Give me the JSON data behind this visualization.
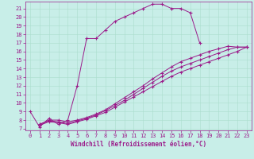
{
  "xlabel": "Windchill (Refroidissement éolien,°C)",
  "bg_color": "#c8eee8",
  "line_color": "#9b1a8a",
  "grid_color": "#aaddcc",
  "tick_fontsize": 5,
  "label_fontsize": 5.5,
  "xmin": -0.5,
  "xmax": 23.5,
  "ymin": 6.8,
  "ymax": 21.8,
  "main_x": [
    0,
    1,
    2,
    3,
    4,
    5,
    6,
    7,
    8,
    9,
    10,
    11,
    12,
    13,
    14,
    15,
    16,
    17,
    18
  ],
  "main_y": [
    9.0,
    7.2,
    8.2,
    7.5,
    8.0,
    12.0,
    17.5,
    17.5,
    18.5,
    19.5,
    20.0,
    20.5,
    21.0,
    21.5,
    21.5,
    21.0,
    21.0,
    20.5,
    17.0
  ],
  "l2x": [
    1,
    2,
    3,
    4,
    5,
    6,
    7,
    8,
    9,
    10,
    11,
    12,
    13,
    14,
    15,
    16,
    17,
    18,
    19,
    20,
    21,
    22,
    23
  ],
  "l2y": [
    7.5,
    8.0,
    8.0,
    7.8,
    8.0,
    8.3,
    8.7,
    9.2,
    9.9,
    10.6,
    11.3,
    12.0,
    12.8,
    13.5,
    14.2,
    14.8,
    15.2,
    15.6,
    16.0,
    16.3,
    16.6,
    16.5,
    16.5
  ],
  "l3x": [
    1,
    2,
    3,
    4,
    5,
    6,
    7,
    8,
    9,
    10,
    11,
    12,
    13,
    14,
    15,
    16,
    17,
    18,
    19,
    20,
    21,
    22,
    23
  ],
  "l3y": [
    7.5,
    7.9,
    7.8,
    7.6,
    7.9,
    8.2,
    8.6,
    9.1,
    9.7,
    10.3,
    11.0,
    11.7,
    12.4,
    13.1,
    13.7,
    14.2,
    14.6,
    15.0,
    15.4,
    15.8,
    16.2,
    16.5,
    16.5
  ],
  "l4x": [
    1,
    2,
    3,
    4,
    5,
    6,
    7,
    8,
    9,
    10,
    11,
    12,
    13,
    14,
    15,
    16,
    17,
    18,
    19,
    20,
    21,
    22,
    23
  ],
  "l4y": [
    7.4,
    7.8,
    7.7,
    7.5,
    7.8,
    8.1,
    8.5,
    8.9,
    9.5,
    10.1,
    10.7,
    11.3,
    11.9,
    12.5,
    13.1,
    13.6,
    14.0,
    14.4,
    14.8,
    15.2,
    15.6,
    16.0,
    16.5
  ]
}
